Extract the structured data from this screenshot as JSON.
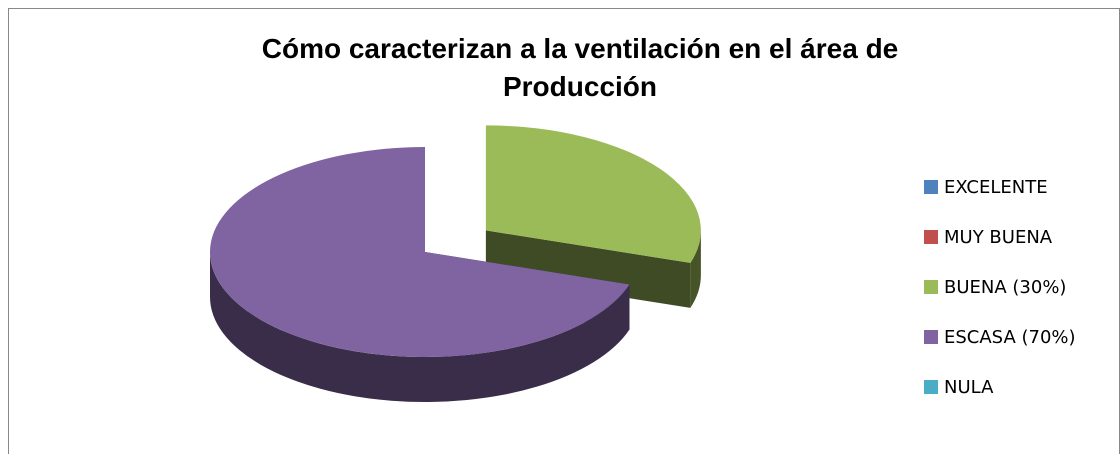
{
  "chart_data": {
    "type": "pie3d",
    "title": "Cómo caracterizan a la ventilación en el área de Producción",
    "categories": [
      "EXCELENTE",
      "MUY BUENA",
      "BUENA (30%)",
      "ESCASA (70%)",
      "NULA"
    ],
    "values": [
      0,
      0,
      30,
      70,
      0
    ],
    "colors": [
      "#4f81bd",
      "#c0504d",
      "#9bbb59",
      "#8064a2",
      "#4bacc6"
    ],
    "explode": [
      0,
      0,
      0.35,
      0,
      0
    ],
    "legend": "right"
  }
}
